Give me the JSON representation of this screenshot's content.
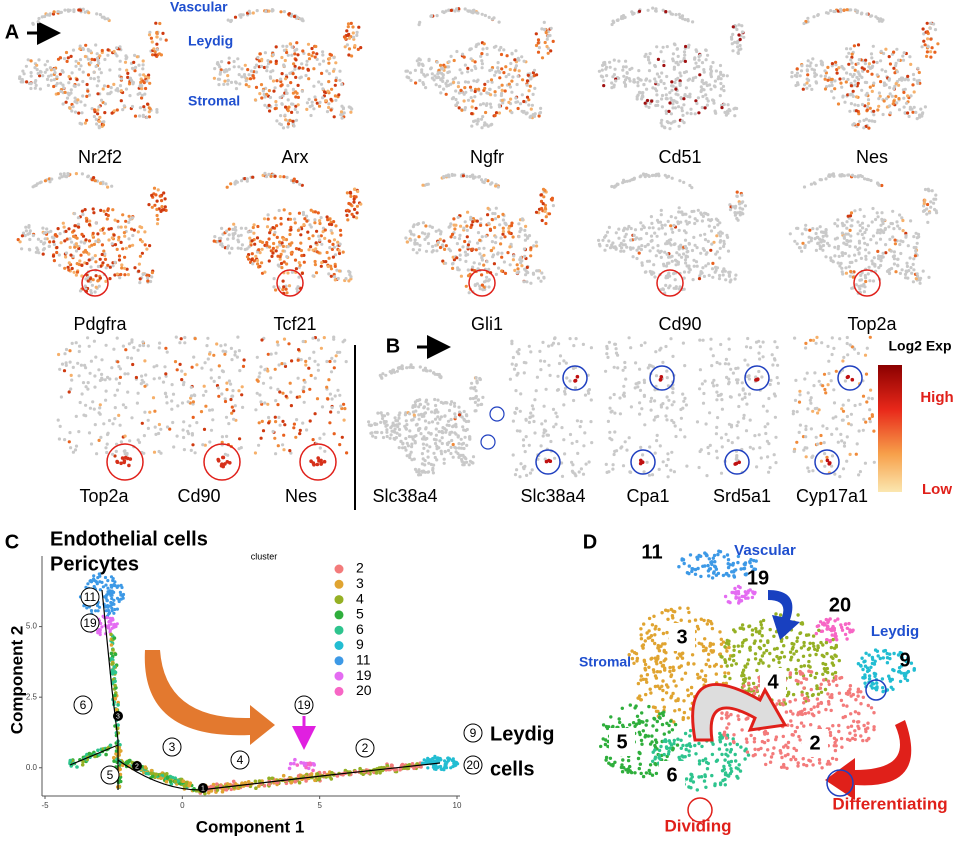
{
  "panel_a": {
    "label": "A",
    "annotations": [
      "Vascular",
      "Leydig",
      "Stromal"
    ],
    "genes_row1": [
      "Nr2f2",
      "Arx",
      "Ngfr",
      "Cd51",
      "Nes"
    ],
    "genes_row2": [
      "Pdgfra",
      "Tcf21",
      "Gli1",
      "Cd90",
      "Top2a"
    ],
    "zoom_genes": [
      "Top2a",
      "Cd90",
      "Nes"
    ]
  },
  "panel_b": {
    "label": "B",
    "genes": [
      "Slc38a4",
      "Slc38a4",
      "Cpa1",
      "Srd5a1",
      "Cyp17a1"
    ],
    "legend_title": "Log2 Exp",
    "legend_high": "High",
    "legend_low": "Low"
  },
  "panel_c": {
    "label": "C",
    "title_lines": [
      "Endothelial cells",
      "Pericytes"
    ],
    "legend_title": "cluster",
    "x_label": "Component 1",
    "y_label": "Component 2",
    "xlim": [
      -5,
      10
    ],
    "xticks": [
      -5,
      0,
      5,
      10
    ],
    "ylim": [
      -1,
      7.5
    ],
    "yticks": [
      {
        "value": 0,
        "label": "0.0"
      },
      {
        "value": 2.5,
        "label": "2.5"
      },
      {
        "value": 5,
        "label": "5.0"
      }
    ],
    "clusters": [
      {
        "name": "2",
        "color": "#f37b7b"
      },
      {
        "name": "3",
        "color": "#e0a431"
      },
      {
        "name": "4",
        "color": "#95b024"
      },
      {
        "name": "5",
        "color": "#2fae3c"
      },
      {
        "name": "6",
        "color": "#2ec48e"
      },
      {
        "name": "9",
        "color": "#22bdd2"
      },
      {
        "name": "11",
        "color": "#3d99e6"
      },
      {
        "name": "19",
        "color": "#e46cf2"
      },
      {
        "name": "20",
        "color": "#f766c5"
      }
    ],
    "circled_labels": [
      "11",
      "19",
      "6",
      "5",
      "3",
      "4",
      "19",
      "2",
      "9",
      "20"
    ],
    "nodes": [
      "3",
      "2",
      "1"
    ],
    "end_label_lines": [
      "Leydig",
      "cells"
    ]
  },
  "panel_d": {
    "label": "D",
    "cluster_labels": [
      "11",
      "19",
      "20",
      "9",
      "3",
      "4",
      "5",
      "6",
      "2"
    ],
    "annotations": [
      "Vascular",
      "Leydig",
      "Stromal",
      "Dividing",
      "Differentiating"
    ]
  }
}
